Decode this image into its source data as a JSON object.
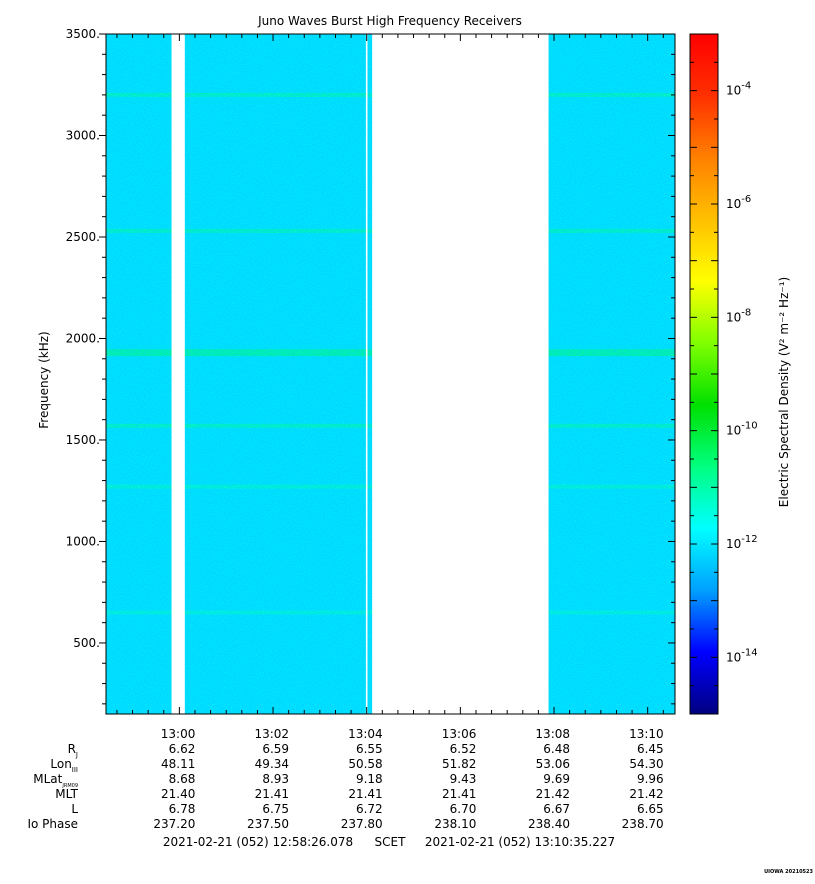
{
  "chart_data": {
    "type": "heatmap",
    "title": "Juno Waves Burst High Frequency Receivers",
    "ylabel": "Frequency (kHz)",
    "ylim": [
      150,
      3500
    ],
    "y_ticks": [
      {
        "value": 500,
        "label": "500."
      },
      {
        "value": 1000,
        "label": "1000."
      },
      {
        "value": 1500,
        "label": "1500."
      },
      {
        "value": 2000,
        "label": "2000."
      },
      {
        "value": 2500,
        "label": "2500."
      },
      {
        "value": 3000,
        "label": "3000."
      },
      {
        "value": 3500,
        "label": "3500."
      }
    ],
    "x_start": "12:58:26",
    "x_end": "13:10:35",
    "x_ticks": [
      "13:00",
      "13:02",
      "13:04",
      "13:06",
      "13:08",
      "13:10"
    ],
    "data_gaps": [
      [
        "12:59:50",
        "13:00:07"
      ],
      [
        "13:04:07",
        "13:07:53"
      ]
    ],
    "thin_gap": "13:04:00",
    "background_level_exponent": -12,
    "emission_lines": [
      {
        "frequency_khz": 3200,
        "level_exponent": -11
      },
      {
        "frequency_khz": 2530,
        "level_exponent": -11
      },
      {
        "frequency_khz": 1930,
        "level_exponent": -10.7
      },
      {
        "frequency_khz": 1570,
        "level_exponent": -11
      },
      {
        "frequency_khz": 1270,
        "level_exponent": -11.2
      },
      {
        "frequency_khz": 650,
        "level_exponent": -11.3
      }
    ],
    "colorbar": {
      "label": "Electric Spectral Density (V² m⁻² Hz⁻¹)",
      "scale": "log",
      "range_exponent": [
        -15,
        -3
      ],
      "ticks": [
        {
          "exponent": -4,
          "label": "10"
        },
        {
          "exponent": -6,
          "label": "10"
        },
        {
          "exponent": -8,
          "label": "10"
        },
        {
          "exponent": -10,
          "label": "10"
        },
        {
          "exponent": -12,
          "label": "10"
        },
        {
          "exponent": -14,
          "label": "10"
        }
      ],
      "colors": [
        "#000080",
        "#0000ff",
        "#00a0ff",
        "#00ffff",
        "#00ff80",
        "#00e000",
        "#80ff00",
        "#ffff00",
        "#ffc000",
        "#ff8000",
        "#ff3000",
        "#ff0000"
      ]
    },
    "ephemeris": {
      "row_labels": [
        "R",
        "Lon",
        "MLat",
        "MLT",
        "L",
        "Io Phase"
      ],
      "row_subscripts": [
        "J",
        "III",
        "JRM09",
        "",
        "",
        ""
      ],
      "rows": [
        [
          "6.62",
          "6.59",
          "6.55",
          "6.52",
          "6.48",
          "6.45"
        ],
        [
          "48.11",
          "49.34",
          "50.58",
          "51.82",
          "53.06",
          "54.30"
        ],
        [
          "8.68",
          "8.93",
          "9.18",
          "9.43",
          "9.69",
          "9.96"
        ],
        [
          "21.40",
          "21.41",
          "21.41",
          "21.41",
          "21.42",
          "21.42"
        ],
        [
          "6.78",
          "6.75",
          "6.72",
          "6.70",
          "6.67",
          "6.65"
        ],
        [
          "237.20",
          "237.50",
          "237.80",
          "238.10",
          "238.40",
          "238.70"
        ]
      ]
    },
    "time_range": {
      "start": "2021-02-21 (052) 12:58:26.078",
      "middle": "SCET",
      "end": "2021-02-21 (052) 13:10:35.227"
    },
    "footer_tag": "UIOWA 20210523"
  }
}
